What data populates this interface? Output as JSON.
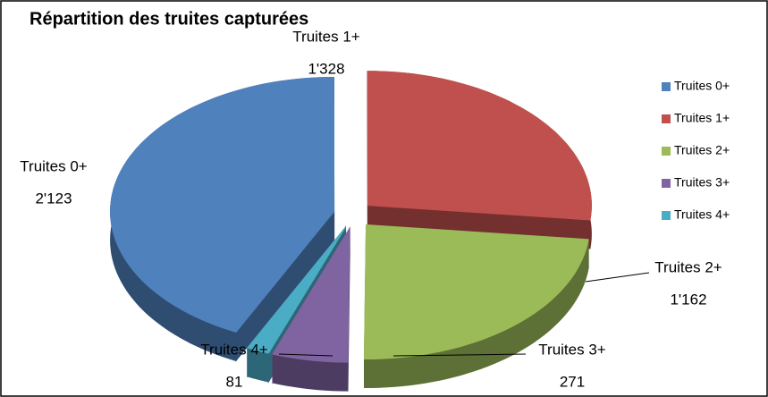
{
  "chart_data": {
    "type": "pie3d",
    "title": "Répartition des truites capturées",
    "categories": [
      "Truites 0+",
      "Truites 1+",
      "Truites 2+",
      "Truites 3+",
      "Truites 4+"
    ],
    "values": [
      2123,
      1328,
      1162,
      271,
      81
    ],
    "value_labels": [
      "2'123",
      "1'328",
      "1'162",
      "271",
      "81"
    ],
    "colors": [
      "#4f81bd",
      "#c0504d",
      "#9bbb59",
      "#8064a2",
      "#4bacc6"
    ],
    "legend": "right"
  }
}
